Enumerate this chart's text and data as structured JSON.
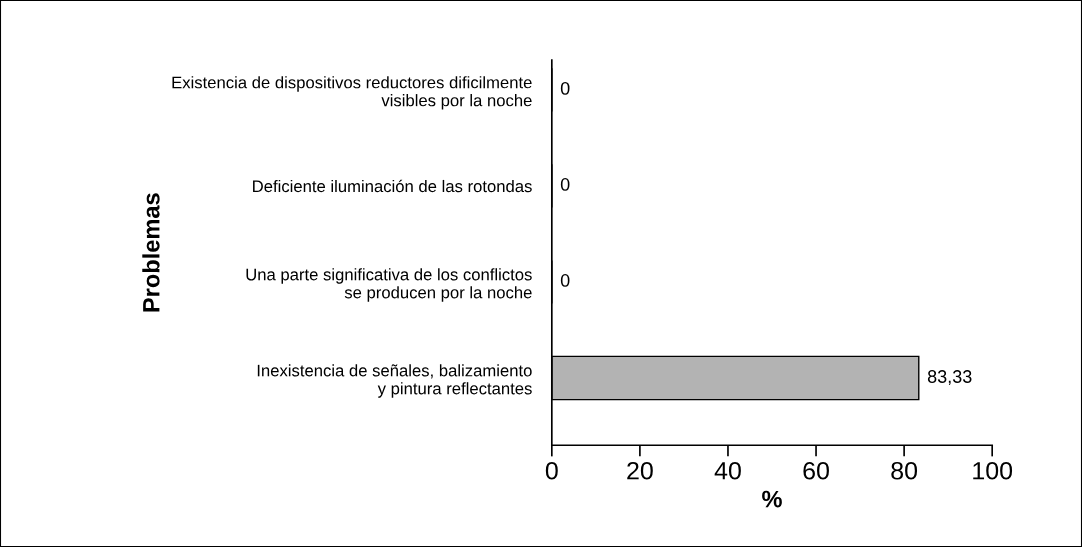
{
  "chart_data": {
    "type": "bar",
    "orientation": "horizontal",
    "xlabel": "%",
    "ylabel": "Problemas",
    "categories": [
      "Existencia de dispositivos reductores dificilmente\nvisibles por la noche",
      "Deficiente iluminación de las rotondas",
      "Una parte significativa de los conflictos\nse producen por la noche",
      "Inexistencia de señales, balizamiento\ny pintura reflectantes"
    ],
    "values": [
      0,
      0,
      0,
      83.33
    ],
    "color": "#b3b3b3",
    "value_labels": [
      "0",
      "0",
      "0",
      "83,33"
    ],
    "xlim": [
      0,
      100
    ],
    "xticks": [
      0,
      20,
      40,
      60,
      80,
      100
    ],
    "grid": false,
    "legend": false
  }
}
